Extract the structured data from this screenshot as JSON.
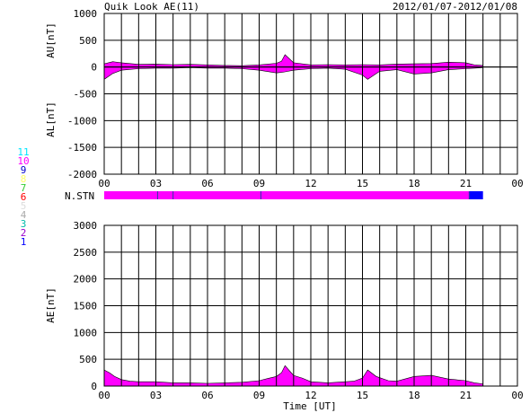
{
  "header": {
    "title": "Quik Look AE(11)",
    "date_range": "2012/01/07-2012/01/08"
  },
  "colors": {
    "fill": "#ff00ff",
    "recent": "#0000ff",
    "grid": "#000000",
    "background": "#ffffff"
  },
  "legend": {
    "labels": [
      "11",
      "10",
      "9",
      "8",
      "7",
      "6",
      "5",
      "4",
      "3",
      "2",
      "1"
    ],
    "colors": [
      "#00e5ff",
      "#ff00ff",
      "#0000cc",
      "#ffff66",
      "#33cc33",
      "#ff0000",
      "#dddddd",
      "#aaaaaa",
      "#00bbaa",
      "#9900cc",
      "#0000ff"
    ]
  },
  "chart_data": [
    {
      "type": "area",
      "title": "Quik Look AE(11)",
      "xlabel": "",
      "ylabel_upper": "AU[nT]",
      "ylabel_lower": "AL[nT]",
      "ylim": [
        -2000,
        1000
      ],
      "yticks": [
        "1000",
        "500",
        "0",
        "-500",
        "-1000",
        "-1500",
        "-2000"
      ],
      "xlim": [
        0,
        24
      ],
      "xticks": [
        "00",
        "03",
        "06",
        "09",
        "12",
        "15",
        "18",
        "21",
        "00"
      ],
      "grid": true,
      "series": [
        {
          "name": "AU",
          "x": [
            0,
            0.5,
            1,
            2,
            3,
            4,
            5,
            6,
            7,
            8,
            9,
            10,
            10.3,
            10.5,
            11,
            12,
            13,
            14,
            15,
            16,
            17,
            18,
            19,
            20,
            21,
            21.5,
            22
          ],
          "values": [
            60,
            100,
            80,
            50,
            55,
            45,
            50,
            40,
            30,
            25,
            40,
            70,
            110,
            230,
            80,
            40,
            45,
            40,
            45,
            40,
            55,
            60,
            65,
            90,
            80,
            40,
            30
          ]
        },
        {
          "name": "AL",
          "x": [
            0,
            0.5,
            1,
            2,
            3,
            4,
            5,
            6,
            7,
            8,
            9,
            10,
            10.3,
            10.5,
            11,
            12,
            13,
            14,
            15,
            15.3,
            16,
            17,
            18,
            19,
            20,
            21,
            21.5,
            22
          ],
          "values": [
            -230,
            -120,
            -60,
            -30,
            -20,
            -20,
            -10,
            -20,
            -20,
            -30,
            -60,
            -110,
            -100,
            -90,
            -60,
            -30,
            -20,
            -40,
            -150,
            -230,
            -80,
            -50,
            -130,
            -110,
            -50,
            -30,
            -20,
            -10
          ]
        }
      ]
    },
    {
      "type": "bar",
      "ylabel": "N.STN",
      "xlim": [
        0,
        24
      ],
      "segments": [
        {
          "from": 0,
          "to": 3.1,
          "value": 10
        },
        {
          "from": 3.1,
          "to": 4.0,
          "value": 10
        },
        {
          "from": 4.0,
          "to": 9.1,
          "value": 10
        },
        {
          "from": 9.1,
          "to": 21.2,
          "value": 10
        },
        {
          "from": 21.2,
          "to": 22.0,
          "value": 1
        }
      ]
    },
    {
      "type": "area",
      "title": "",
      "xlabel": "Time [UT]",
      "ylabel": "AE[nT]",
      "ylim": [
        0,
        3000
      ],
      "yticks": [
        "3000",
        "2500",
        "2000",
        "1500",
        "1000",
        "500",
        "0"
      ],
      "xlim": [
        0,
        24
      ],
      "xticks": [
        "00",
        "03",
        "06",
        "09",
        "12",
        "15",
        "18",
        "21",
        "00"
      ],
      "grid": true,
      "series": [
        {
          "name": "AE",
          "x": [
            0,
            0.3,
            0.6,
            1,
            1.5,
            2,
            3,
            4,
            5,
            6,
            7,
            8,
            9,
            9.5,
            10,
            10.3,
            10.5,
            11,
            11.5,
            12,
            13,
            14,
            14.5,
            15,
            15.3,
            15.8,
            16.5,
            17,
            18,
            19,
            20,
            21,
            21.5,
            22
          ],
          "values": [
            300,
            250,
            180,
            120,
            90,
            80,
            80,
            60,
            60,
            50,
            60,
            70,
            100,
            140,
            180,
            250,
            380,
            200,
            150,
            80,
            60,
            80,
            90,
            150,
            300,
            180,
            100,
            90,
            180,
            200,
            130,
            100,
            60,
            40
          ]
        }
      ]
    }
  ]
}
